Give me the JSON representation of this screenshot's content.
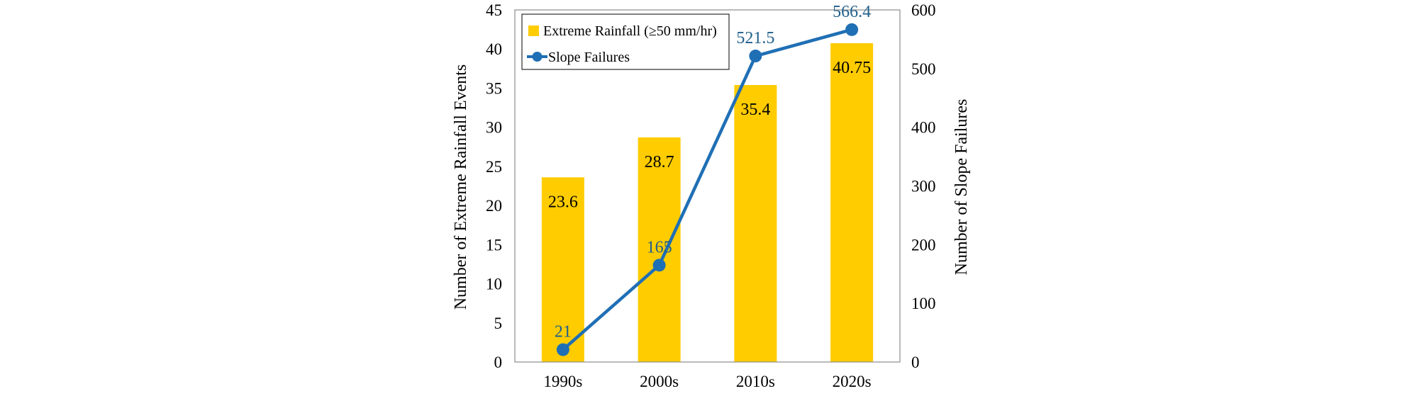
{
  "chart_data": {
    "type": "bar",
    "categories": [
      "1990s",
      "2000s",
      "2010s",
      "2020s"
    ],
    "series": [
      {
        "name": "Extreme Rainfall (≥50 mm/hr)",
        "type": "bar",
        "axis": "left",
        "values": [
          23.6,
          28.7,
          35.4,
          40.75
        ],
        "labels": [
          "23.6",
          "28.7",
          "35.4",
          "40.75"
        ],
        "color": "#ffcc00"
      },
      {
        "name": "Slope Failures",
        "type": "line",
        "axis": "right",
        "values": [
          21,
          165,
          521.5,
          566.4
        ],
        "labels": [
          "21",
          "165",
          "521.5",
          "566.4"
        ],
        "color": "#1f6fb5"
      }
    ],
    "ylabel": "Number of Extreme Rainfall Events",
    "y2label": "Number of Slope Failures",
    "ylim": [
      0,
      45
    ],
    "y2lim": [
      0,
      600
    ],
    "yticks": [
      "0",
      "5",
      "10",
      "15",
      "20",
      "25",
      "30",
      "35",
      "40",
      "45"
    ],
    "y2ticks": [
      "0",
      "100",
      "200",
      "300",
      "400",
      "500",
      "600"
    ],
    "legend": "top-left",
    "grid": false,
    "label_color_line": "#1f5f8a"
  }
}
